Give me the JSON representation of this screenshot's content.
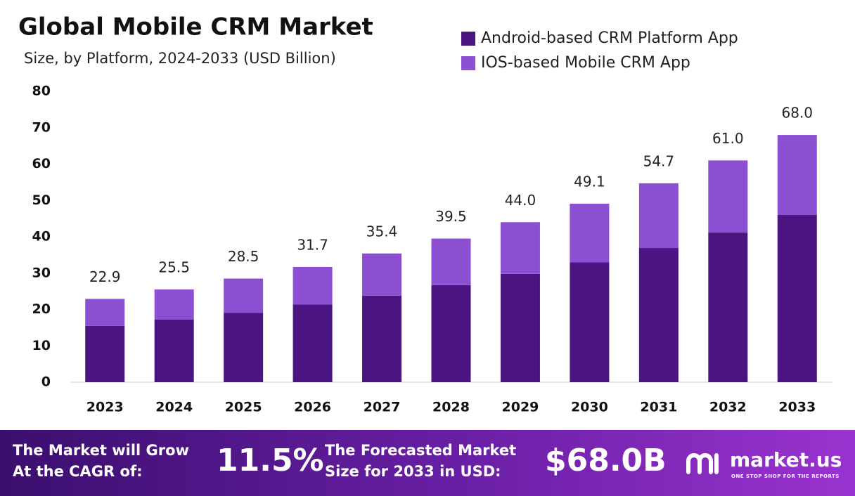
{
  "chart_data": {
    "type": "stacked-bar",
    "title": "Global Mobile CRM Market",
    "subtitle": "Size, by Platform, 2024-2033 (USD Billion)",
    "categories": [
      "2023",
      "2024",
      "2025",
      "2026",
      "2027",
      "2028",
      "2029",
      "2030",
      "2031",
      "2032",
      "2033"
    ],
    "series": [
      {
        "name": "Android-based CRM Platform App",
        "color": "#4a1580",
        "values": [
          15.5,
          17.2,
          19.1,
          21.4,
          23.8,
          26.7,
          29.8,
          33.0,
          36.9,
          41.2,
          46.0
        ]
      },
      {
        "name": "IOS-based Mobile CRM App",
        "color": "#8d4fd2",
        "values": [
          7.4,
          8.3,
          9.4,
          10.3,
          11.6,
          12.8,
          14.2,
          16.1,
          17.8,
          19.8,
          22.0
        ]
      }
    ],
    "totals": {
      "values": [
        22.9,
        25.5,
        28.5,
        31.7,
        35.4,
        39.5,
        44.0,
        49.1,
        54.7,
        61.0,
        68.0
      ],
      "value_labels": [
        "22.9",
        "25.5",
        "28.5",
        "31.7",
        "35.4",
        "39.5",
        "44.0",
        "49.1",
        "54.7",
        "61.0",
        "68.0"
      ]
    },
    "ylim": [
      0,
      80
    ],
    "yticks": [
      0,
      10,
      20,
      30,
      40,
      50,
      60,
      70,
      80
    ],
    "grid": false,
    "legend": "top-right"
  },
  "banner": {
    "cagr_label": "The Market will Grow At the CAGR of:",
    "cagr": "11.5%",
    "forecast_label": "The Forecasted Market Size for 2033 in USD:",
    "forecast": "$68.0B",
    "logo": "market.us",
    "tagline": "ONE STOP SHOP FOR THE REPORTS"
  }
}
